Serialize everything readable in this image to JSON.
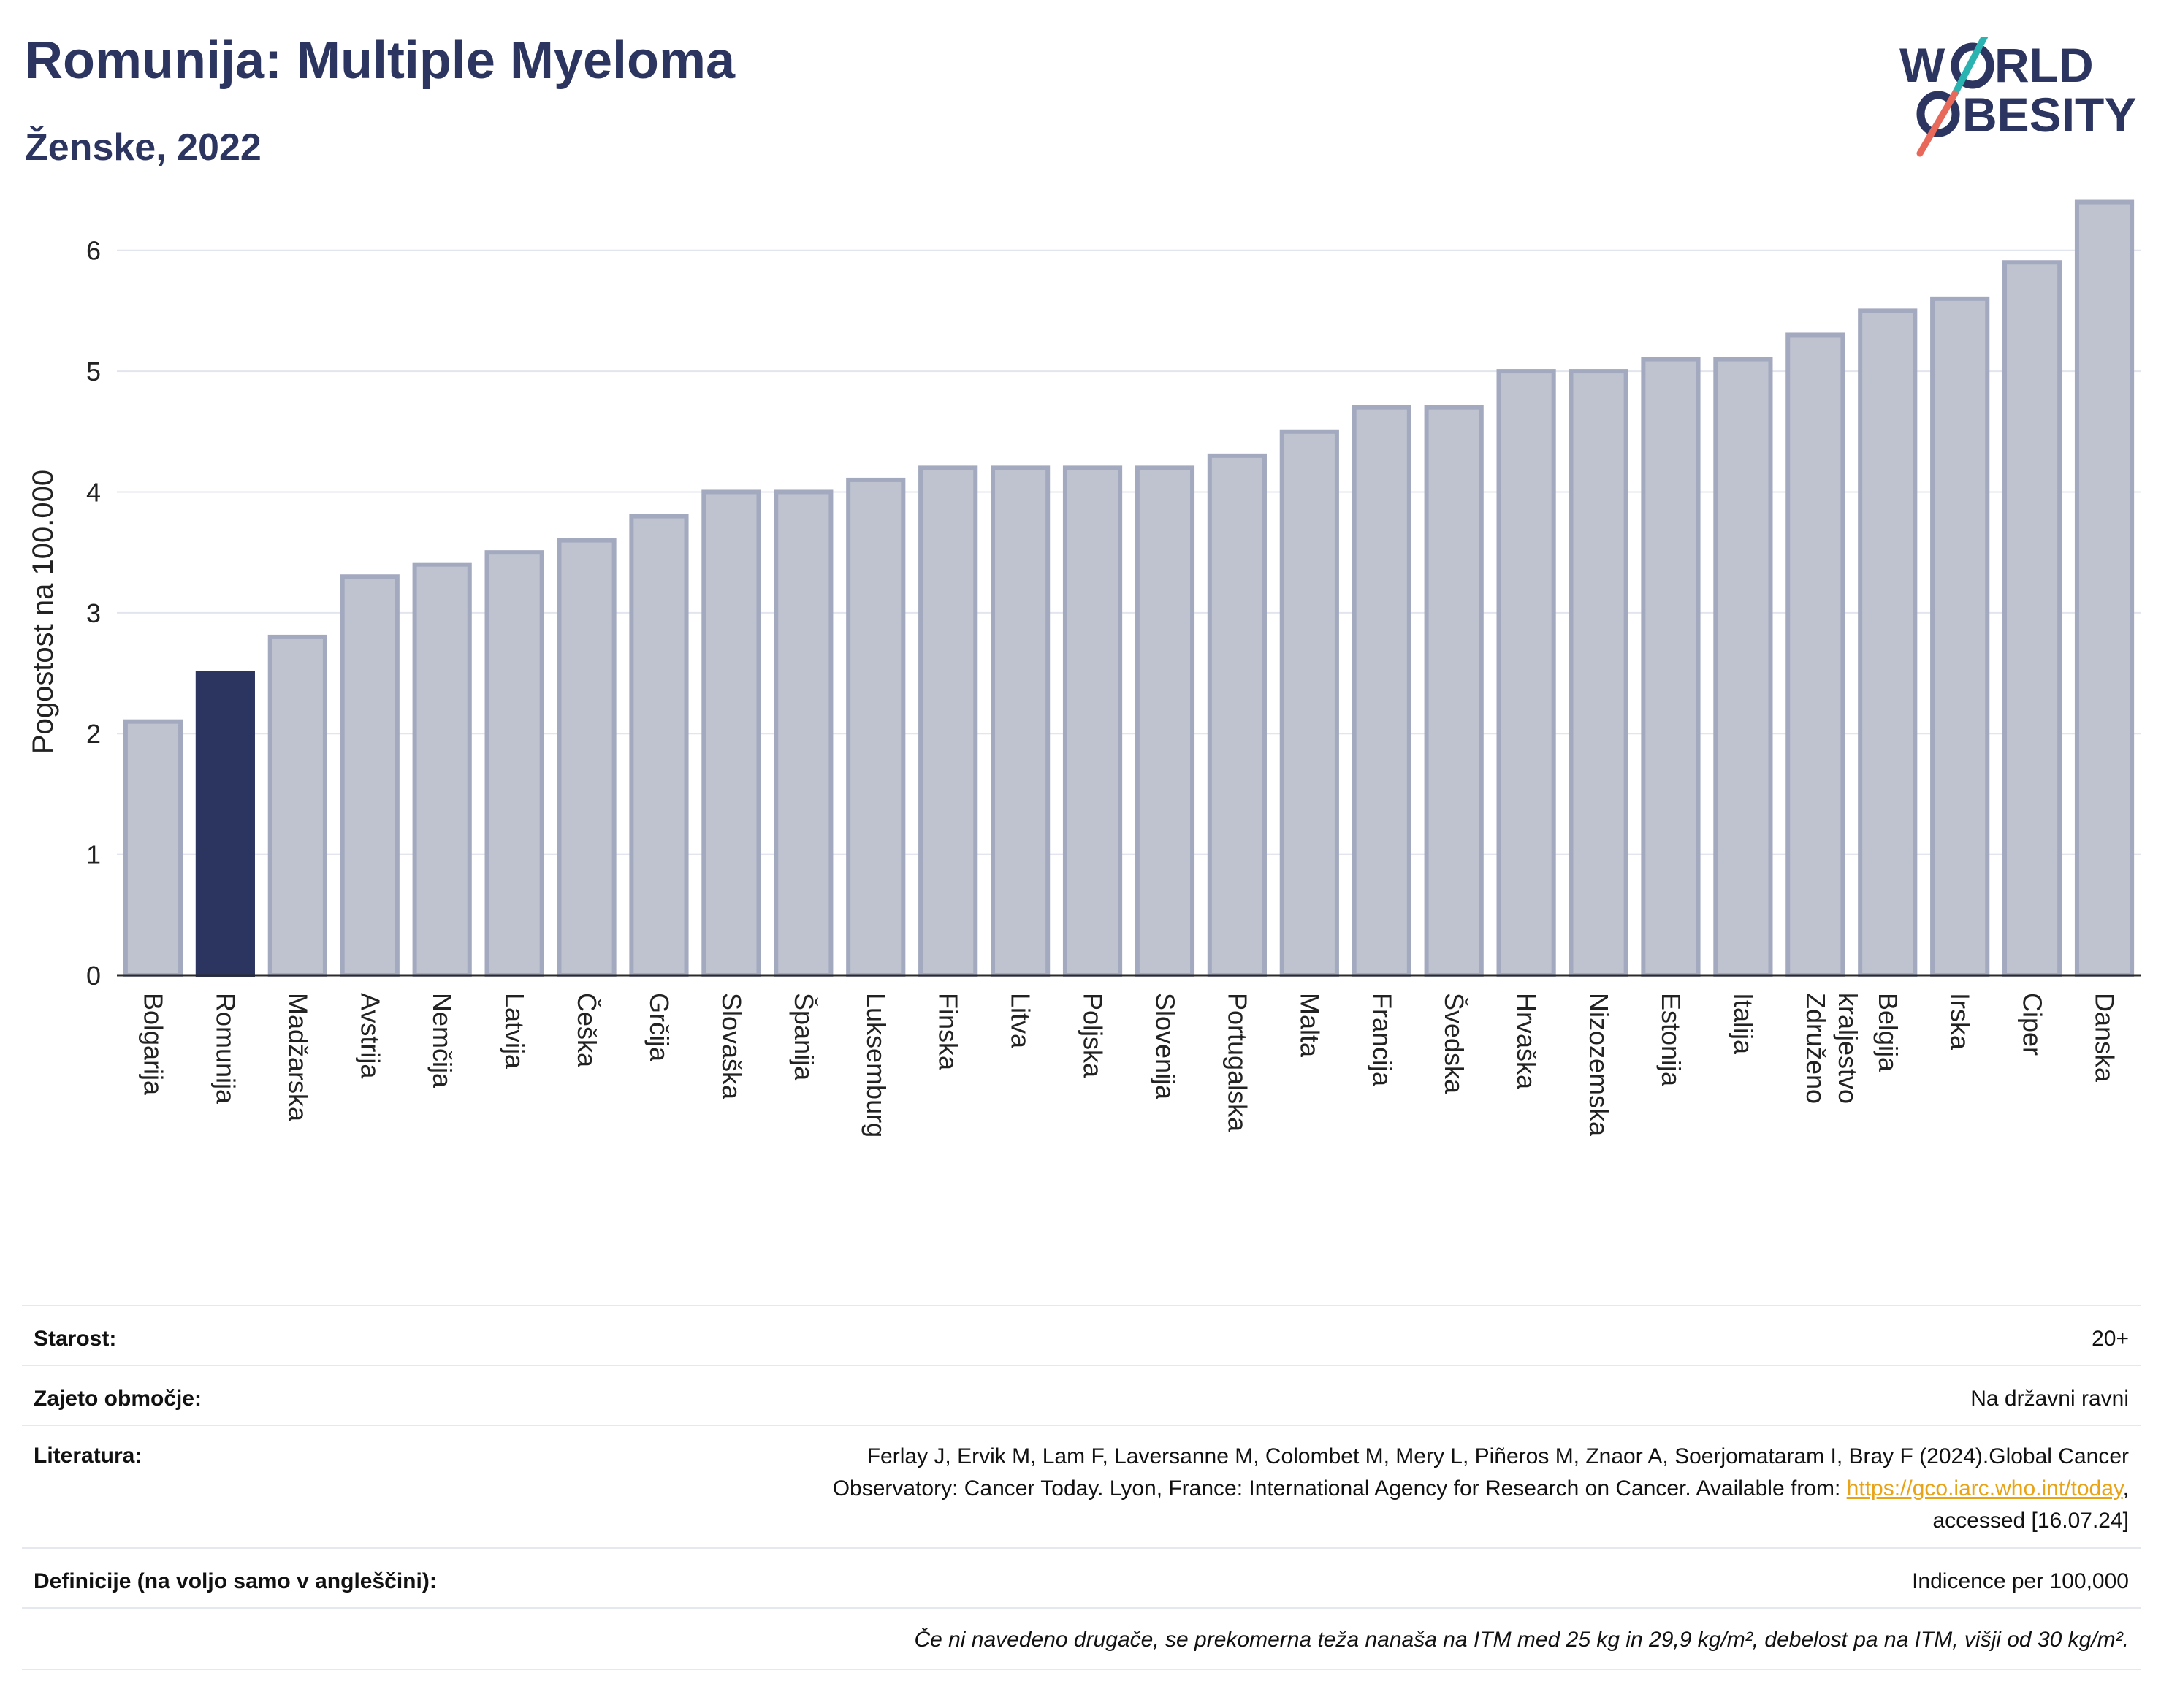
{
  "header": {
    "title": "Romunija: Multiple Myeloma",
    "subtitle": "Ženske, 2022"
  },
  "logo": {
    "line1": "W   RLD",
    "line2": "  BESITY",
    "accent_teal": "#2bb3b1",
    "accent_red": "#e8695a"
  },
  "chart_data": {
    "type": "bar",
    "ylabel": "Pogostost na 100.000",
    "ylim": [
      0,
      6.5
    ],
    "yticks": [
      0,
      1,
      2,
      3,
      4,
      5,
      6
    ],
    "grid": true,
    "highlight": "Romunija",
    "colors": {
      "bar": "#bfc3d0",
      "bar_border": "#a3a9bf",
      "highlight": "#2b3560"
    },
    "categories": [
      "Bolgarija",
      "Romunija",
      "Madžarska",
      "Avstrija",
      "Nemčija",
      "Latvija",
      "Češka",
      "Grčija",
      "Slovaška",
      "Španija",
      "Luksemburg",
      "Finska",
      "Litva",
      "Poljska",
      "Slovenija",
      "Portugalska",
      "Malta",
      "Francija",
      "Švedska",
      "Hrvaška",
      "Nizozemska",
      "Estonija",
      "Italija",
      "Združeno kraljestvo",
      "Belgija",
      "Irska",
      "Ciper",
      "Danska"
    ],
    "values": [
      2.1,
      2.5,
      2.8,
      3.3,
      3.4,
      3.5,
      3.6,
      3.8,
      4.0,
      4.0,
      4.1,
      4.2,
      4.2,
      4.2,
      4.2,
      4.3,
      4.5,
      4.7,
      4.7,
      5.0,
      5.0,
      5.1,
      5.1,
      5.3,
      5.5,
      5.6,
      5.9,
      6.4
    ]
  },
  "info": {
    "age_label": "Starost:",
    "age_value": "20+",
    "coverage_label": "Zajeto območje:",
    "coverage_value": "Na državni ravni",
    "literature_label": "Literatura:",
    "literature_line1": "Ferlay J, Ervik M, Lam F, Laversanne M, Colombet M, Mery L, Piñeros M, Znaor A, Soerjomataram I, Bray F (2024).Global Cancer",
    "literature_line2": "Observatory: Cancer Today. Lyon, France: International Agency for Research on Cancer. Available from: ",
    "literature_link": "https://gco.iarc.who.int/today",
    "literature_line2_end": ",",
    "literature_line3": "accessed [16.07.24]",
    "definitions_label": "Definicije (na voljo samo v angleščini):",
    "definitions_value": "Indicence per 100,000",
    "footnote": "Če ni navedeno drugače, se prekomerna teža nanaša na ITM med 25 kg in 29,9 kg/m², debelost pa na ITM, višji od 30 kg/m²."
  }
}
